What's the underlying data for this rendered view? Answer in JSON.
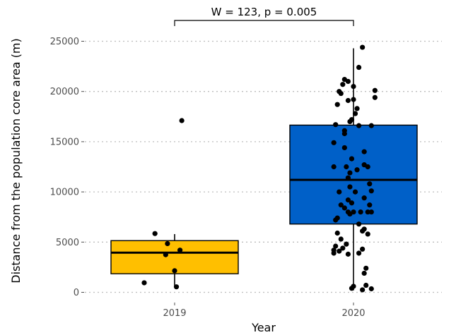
{
  "chart_data": {
    "type": "boxplot",
    "xlabel": "Year",
    "ylabel": "Distance from the population core area (m)",
    "ylim": [
      -500,
      25800
    ],
    "yticks": [
      0,
      5000,
      10000,
      15000,
      20000,
      25000
    ],
    "grid": "horizontal-dotted",
    "categories": [
      "2019",
      "2020"
    ],
    "boxes": [
      {
        "category": "2019",
        "color": "#FFBF00",
        "whisker_low": 500,
        "q1": 1850,
        "median": 3950,
        "q3": 5150,
        "whisker_high": 5800,
        "points": [
          {
            "x": -0.17,
            "y": 950
          },
          {
            "x": 0.04,
            "y": 17100
          },
          {
            "x": -0.11,
            "y": 5850
          },
          {
            "x": -0.04,
            "y": 4850
          },
          {
            "x": -0.05,
            "y": 3750
          },
          {
            "x": 0.03,
            "y": 4200
          },
          {
            "x": 0.0,
            "y": 2150
          },
          {
            "x": 0.01,
            "y": 550
          }
        ]
      },
      {
        "category": "2020",
        "color": "#0060C8",
        "whisker_low": 200,
        "q1": 6800,
        "median": 11200,
        "q3": 16650,
        "whisker_high": 24300,
        "points": [
          {
            "x": 0.05,
            "y": 24400
          },
          {
            "x": 0.03,
            "y": 22400
          },
          {
            "x": -0.05,
            "y": 21200
          },
          {
            "x": -0.03,
            "y": 21000
          },
          {
            "x": -0.06,
            "y": 20700
          },
          {
            "x": 0.0,
            "y": 20500
          },
          {
            "x": -0.08,
            "y": 20000
          },
          {
            "x": -0.07,
            "y": 19800
          },
          {
            "x": 0.12,
            "y": 20100
          },
          {
            "x": 0.12,
            "y": 19400
          },
          {
            "x": 0.0,
            "y": 19200
          },
          {
            "x": -0.03,
            "y": 19100
          },
          {
            "x": -0.09,
            "y": 18700
          },
          {
            "x": 0.02,
            "y": 18300
          },
          {
            "x": 0.01,
            "y": 17800
          },
          {
            "x": -0.01,
            "y": 17200
          },
          {
            "x": -0.02,
            "y": 17000
          },
          {
            "x": 0.03,
            "y": 16600
          },
          {
            "x": -0.1,
            "y": 16700
          },
          {
            "x": 0.1,
            "y": 16600
          },
          {
            "x": -0.05,
            "y": 16100
          },
          {
            "x": -0.05,
            "y": 15800
          },
          {
            "x": -0.11,
            "y": 14900
          },
          {
            "x": -0.05,
            "y": 14400
          },
          {
            "x": 0.06,
            "y": 14000
          },
          {
            "x": -0.01,
            "y": 13300
          },
          {
            "x": 0.06,
            "y": 12700
          },
          {
            "x": 0.08,
            "y": 12500
          },
          {
            "x": -0.11,
            "y": 12500
          },
          {
            "x": -0.04,
            "y": 12500
          },
          {
            "x": 0.02,
            "y": 12200
          },
          {
            "x": -0.02,
            "y": 11900
          },
          {
            "x": -0.03,
            "y": 11400
          },
          {
            "x": 0.09,
            "y": 10800
          },
          {
            "x": -0.02,
            "y": 10500
          },
          {
            "x": 0.1,
            "y": 10100
          },
          {
            "x": -0.08,
            "y": 10000
          },
          {
            "x": 0.01,
            "y": 10000
          },
          {
            "x": 0.06,
            "y": 9400
          },
          {
            "x": -0.03,
            "y": 9200
          },
          {
            "x": -0.01,
            "y": 8900
          },
          {
            "x": 0.09,
            "y": 8700
          },
          {
            "x": -0.07,
            "y": 8700
          },
          {
            "x": -0.05,
            "y": 8400
          },
          {
            "x": 0.1,
            "y": 8000
          },
          {
            "x": 0.08,
            "y": 8000
          },
          {
            "x": 0.04,
            "y": 8000
          },
          {
            "x": 0.0,
            "y": 8000
          },
          {
            "x": -0.03,
            "y": 8000
          },
          {
            "x": -0.02,
            "y": 7800
          },
          {
            "x": -0.09,
            "y": 7400
          },
          {
            "x": -0.1,
            "y": 7200
          },
          {
            "x": 0.03,
            "y": 6800
          },
          {
            "x": 0.06,
            "y": 6300
          },
          {
            "x": 0.05,
            "y": 6100
          },
          {
            "x": -0.09,
            "y": 5900
          },
          {
            "x": 0.08,
            "y": 5800
          },
          {
            "x": -0.07,
            "y": 5300
          },
          {
            "x": -0.04,
            "y": 4800
          },
          {
            "x": -0.1,
            "y": 4600
          },
          {
            "x": -0.06,
            "y": 4400
          },
          {
            "x": -0.11,
            "y": 4200
          },
          {
            "x": -0.08,
            "y": 4100
          },
          {
            "x": 0.05,
            "y": 4300
          },
          {
            "x": -0.11,
            "y": 3900
          },
          {
            "x": 0.03,
            "y": 3900
          },
          {
            "x": -0.03,
            "y": 3800
          },
          {
            "x": 0.07,
            "y": 2400
          },
          {
            "x": 0.06,
            "y": 1900
          },
          {
            "x": 0.07,
            "y": 700
          },
          {
            "x": 0.0,
            "y": 600
          },
          {
            "x": -0.01,
            "y": 400
          },
          {
            "x": 0.1,
            "y": 350
          },
          {
            "x": 0.05,
            "y": 250
          }
        ]
      }
    ],
    "annotation": {
      "text": "W = 123, p = 0.005",
      "from": "2019",
      "to": "2020"
    }
  }
}
